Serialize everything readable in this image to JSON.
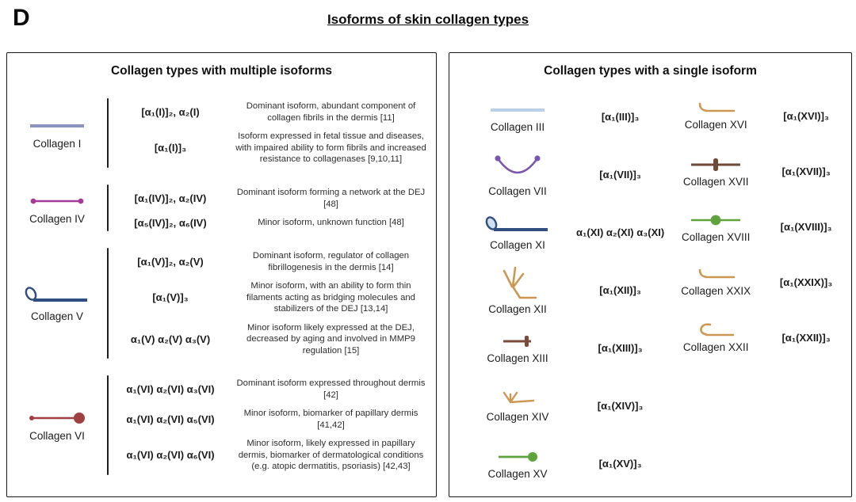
{
  "figure_label": "D",
  "title": "Isoforms of skin collagen types",
  "left_panel": {
    "title": "Collagen types with multiple isoforms",
    "groups": [
      {
        "name": "Collagen I",
        "icon": {
          "name": "collagen-i-line-icon",
          "shape": "line",
          "color": "#8a92bf"
        },
        "isoforms": [
          {
            "formula": "[α₁(I)]₂, α₂(I)",
            "description": "Dominant isoform, abundant component of collagen fibrils in the dermis [11]"
          },
          {
            "formula": "[α₁(I)]₃",
            "description": "Isoform expressed in fetal tissue and diseases, with impaired ability to form fibrils and increased resistance to collagenases [9,10,11]"
          }
        ]
      },
      {
        "name": "Collagen IV",
        "icon": {
          "name": "collagen-iv-line-dots-icon",
          "shape": "line-end-dots",
          "color": "#a23a98"
        },
        "isoforms": [
          {
            "formula": "[α₁(IV)]₂, α₂(IV)",
            "description": "Dominant isoform forming a network at the DEJ [48]"
          },
          {
            "formula": "[α₅(IV)]₂, α₆(IV)",
            "description": "Minor isoform, unknown function [48]"
          }
        ]
      },
      {
        "name": "Collagen V",
        "icon": {
          "name": "collagen-v-line-loop-icon",
          "shape": "line-loop",
          "color": "#2e4d80",
          "fill": "#ffffff"
        },
        "isoforms": [
          {
            "formula": "[α₁(V)]₂, α₂(V)",
            "description": "Dominant isoform, regulator of collagen fibrillogenesis in the dermis [14]"
          },
          {
            "formula": "[α₁(V)]₃",
            "description": "Minor isoform, with an ability to form thin filaments acting as bridging molecules and stabilizers of the DEJ [13,14]"
          },
          {
            "formula": "α₁(V) α₂(V) α₃(V)",
            "description": "Minor isoform likely expressed at the DEJ, decreased by aging and involved in MMP9 regulation [15]"
          }
        ]
      },
      {
        "name": "Collagen VI",
        "icon": {
          "name": "collagen-vi-line-bigdot-icon",
          "shape": "line-end-bigdot",
          "color": "#a04040"
        },
        "isoforms": [
          {
            "formula": "α₁(VI) α₂(VI) α₃(VI)",
            "description": "Dominant isoform expressed throughout dermis [42]"
          },
          {
            "formula": "α₁(VI) α₂(VI) α₅(VI)",
            "description": "Minor isoform, biomarker of papillary dermis [41,42]"
          },
          {
            "formula": "α₁(VI) α₂(VI) α₆(VI)",
            "description": "Minor isoform, likely expressed in papillary dermis, biomarker of dermatological conditions (e.g. atopic dermatitis, psoriasis) [42,43]"
          }
        ]
      }
    ]
  },
  "right_panel": {
    "title": "Collagen types with a single isoform",
    "columns": [
      [
        {
          "name": "Collagen III",
          "icon": {
            "name": "collagen-iii-line-icon",
            "shape": "line",
            "color": "#b9cfea"
          },
          "formula": "[α₁(III)]₃"
        },
        {
          "name": "Collagen VII",
          "icon": {
            "name": "collagen-vii-curve-icon",
            "shape": "curve-dots",
            "color": "#7a57ad"
          },
          "formula": "[α₁(VII)]₃"
        },
        {
          "name": "Collagen XI",
          "icon": {
            "name": "collagen-xi-line-loop-icon",
            "shape": "line-loop",
            "color": "#32507e",
            "fill": "#cfe0f2"
          },
          "formula": "α₁(XI) α₂(XI) α₃(XI)"
        },
        {
          "name": "Collagen XII",
          "icon": {
            "name": "collagen-xii-fork-icon",
            "shape": "fork",
            "color": "#cc9752"
          },
          "formula": "[α₁(XII)]₃"
        },
        {
          "name": "Collagen XIII",
          "icon": {
            "name": "collagen-xiii-line-plus-icon",
            "shape": "line-end-plus",
            "color": "#7a4b38"
          },
          "formula": "[α₁(XIII)]₃"
        },
        {
          "name": "Collagen XIV",
          "icon": {
            "name": "collagen-xiv-arrow-fork-icon",
            "shape": "arrow-fork",
            "color": "#cc9752"
          },
          "formula": "[α₁(XIV)]₃"
        },
        {
          "name": "Collagen XV",
          "icon": {
            "name": "collagen-xv-line-dot-icon",
            "shape": "line-end-dot",
            "color": "#5fa33c"
          },
          "formula": "[α₁(XV)]₃"
        }
      ],
      [
        {
          "name": "Collagen XVI",
          "icon": {
            "name": "collagen-xvi-hook-icon",
            "shape": "hook-line",
            "color": "#cc9752"
          },
          "formula": "[α₁(XVI)]₃"
        },
        {
          "name": "Collagen XVII",
          "icon": {
            "name": "collagen-xvii-line-midplus-icon",
            "shape": "line-mid-plus",
            "color": "#6f4a38"
          },
          "formula": "[α₁(XVII)]₃"
        },
        {
          "name": "Collagen XVIII",
          "icon": {
            "name": "collagen-xviii-line-middot-icon",
            "shape": "line-mid-dot",
            "color": "#5fa33c"
          },
          "formula": "[α₁(XVIII)]₃"
        },
        {
          "name": "Collagen XXIX",
          "icon": {
            "name": "collagen-xxix-hook-icon",
            "shape": "hook-line",
            "color": "#cc9752"
          },
          "formula": "[α₁(XXIX)]₃"
        },
        {
          "name": "Collagen XXII",
          "icon": {
            "name": "collagen-xxii-bent-hook-icon",
            "shape": "bent-hook",
            "color": "#cc9752"
          },
          "formula": "[α₁(XXII)]₃"
        }
      ]
    ]
  }
}
